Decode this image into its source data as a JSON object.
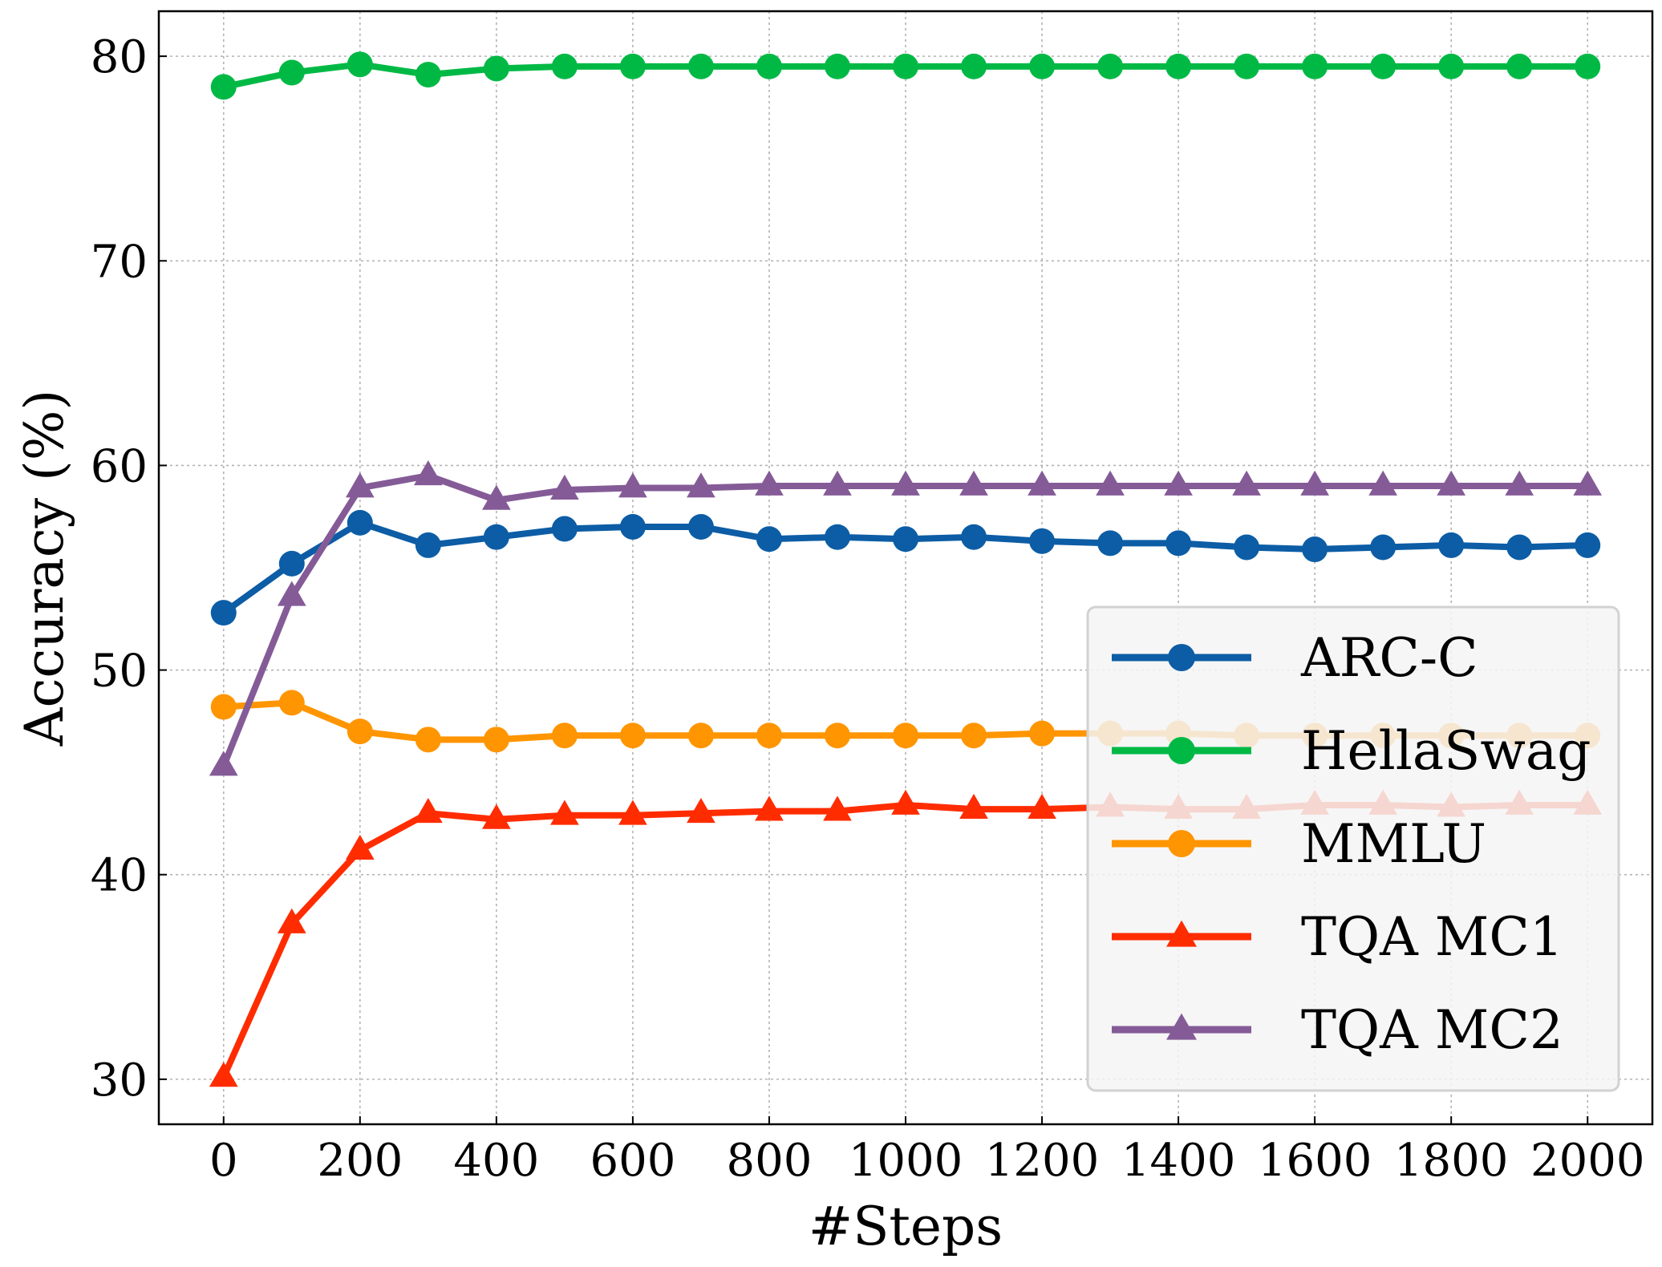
{
  "chart_data": {
    "type": "line",
    "title": "",
    "xlabel": "#Steps",
    "ylabel": "Accuracy (%)",
    "xlim": [
      -95,
      2095
    ],
    "ylim": [
      27.8,
      82.2
    ],
    "xticks": [
      0,
      200,
      400,
      600,
      800,
      1000,
      1200,
      1400,
      1600,
      1800,
      2000
    ],
    "yticks": [
      30,
      40,
      50,
      60,
      70,
      80
    ],
    "grid": true,
    "legend_position": "lower-right",
    "x": [
      0,
      100,
      200,
      300,
      400,
      500,
      600,
      700,
      800,
      900,
      1000,
      1100,
      1200,
      1300,
      1400,
      1500,
      1600,
      1700,
      1800,
      1900,
      2000
    ],
    "series": [
      {
        "name": "ARC-C",
        "color": "#0C5DA5",
        "marker": "circle",
        "values": [
          52.8,
          55.2,
          57.2,
          56.1,
          56.5,
          56.9,
          57.0,
          57.0,
          56.4,
          56.5,
          56.4,
          56.5,
          56.3,
          56.2,
          56.2,
          56.0,
          55.9,
          56.0,
          56.1,
          56.0,
          56.1
        ]
      },
      {
        "name": "HellaSwag",
        "color": "#00B945",
        "marker": "circle",
        "values": [
          78.5,
          79.2,
          79.6,
          79.1,
          79.4,
          79.5,
          79.5,
          79.5,
          79.5,
          79.5,
          79.5,
          79.5,
          79.5,
          79.5,
          79.5,
          79.5,
          79.5,
          79.5,
          79.5,
          79.5,
          79.5
        ]
      },
      {
        "name": "MMLU",
        "color": "#FF9500",
        "marker": "circle",
        "values": [
          48.2,
          48.4,
          47.0,
          46.6,
          46.6,
          46.8,
          46.8,
          46.8,
          46.8,
          46.8,
          46.8,
          46.8,
          46.9,
          46.9,
          46.9,
          46.8,
          46.8,
          46.8,
          46.8,
          46.8,
          46.8
        ]
      },
      {
        "name": "TQA MC1",
        "color": "#FF2C00",
        "marker": "triangle",
        "values": [
          30.1,
          37.6,
          41.2,
          43.0,
          42.7,
          42.9,
          42.9,
          43.0,
          43.1,
          43.1,
          43.4,
          43.2,
          43.2,
          43.3,
          43.2,
          43.2,
          43.4,
          43.4,
          43.3,
          43.4,
          43.4
        ]
      },
      {
        "name": "TQA MC2",
        "color": "#845B97",
        "marker": "triangle",
        "values": [
          45.3,
          53.6,
          58.9,
          59.5,
          58.3,
          58.8,
          58.9,
          58.9,
          59.0,
          59.0,
          59.0,
          59.0,
          59.0,
          59.0,
          59.0,
          59.0,
          59.0,
          59.0,
          59.0,
          59.0,
          59.0
        ]
      }
    ]
  }
}
